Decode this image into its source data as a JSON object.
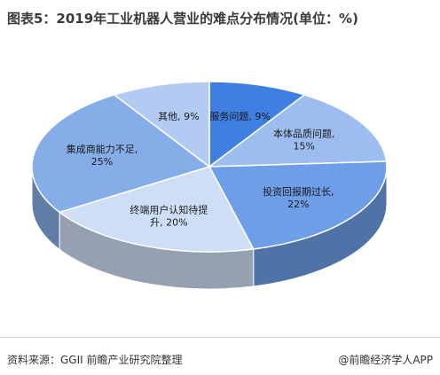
{
  "title": "图表5：2019年工业机器人营业的难点分布情况(单位：%)",
  "source": "资料来源：GGII 前瞻产业研究院整理",
  "credit": "@前瞻经济学人APP",
  "chart_data": {
    "type": "pie",
    "style": "3d",
    "legend": "none",
    "slices": [
      {
        "label": "服务问题",
        "value": 9,
        "color": "#3f7fe2",
        "display": [
          "服务问题, 9%"
        ]
      },
      {
        "label": "本体品质问题",
        "value": 15,
        "color": "#9dbdf1",
        "display": [
          "本体品质问题,",
          "15%"
        ]
      },
      {
        "label": "投资回报期过长",
        "value": 22,
        "color": "#6e9ee8",
        "display": [
          "投资回报期过长,",
          "22%"
        ]
      },
      {
        "label": "终端用户认知待提升",
        "value": 20,
        "color": "#cfdef7",
        "display": [
          "终端用户认知待提",
          "升, 20%"
        ]
      },
      {
        "label": "集成商能力不足",
        "value": 25,
        "color": "#85aee9",
        "display": [
          "集成商能力不足,",
          "25%"
        ]
      },
      {
        "label": "其他",
        "value": 9,
        "color": "#b3cbf3",
        "display": [
          "其他, 9%"
        ]
      }
    ]
  }
}
